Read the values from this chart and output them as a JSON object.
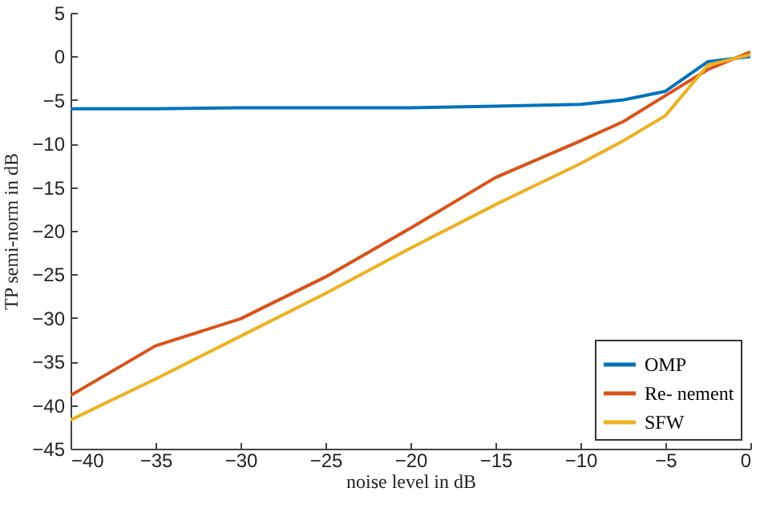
{
  "chart_data": {
    "type": "line",
    "xlabel": "noise level in dB",
    "ylabel": "TP semi-norm in dB",
    "x": [
      -40,
      -35,
      -30,
      -25,
      -20,
      -15,
      -10,
      -7.5,
      -5,
      -2.5,
      0
    ],
    "series": [
      {
        "name": "OMP",
        "color": "#0072bd",
        "values": [
          -6,
          -6,
          -5.9,
          -5.9,
          -5.9,
          -5.7,
          -5.5,
          -5,
          -4,
          -0.6,
          0
        ]
      },
      {
        "name": "Re- nement",
        "color": "#d95319",
        "values": [
          -38.9,
          -33.2,
          -30.1,
          -25.3,
          -19.7,
          -13.9,
          -9.7,
          -7.5,
          -4.5,
          -1.5,
          0.5
        ]
      },
      {
        "name": "SFW",
        "color": "#edb120",
        "values": [
          -41.7,
          -37,
          -32.1,
          -27.2,
          -22,
          -17,
          -12.3,
          -9.7,
          -6.8,
          -1,
          0.2
        ]
      }
    ],
    "xlim": [
      -40,
      0
    ],
    "xticks": [
      -40,
      -35,
      -30,
      -25,
      -20,
      -15,
      -10,
      -5,
      0
    ],
    "ylim": [
      -45,
      5
    ],
    "yticks": [
      -45,
      -40,
      -35,
      -30,
      -25,
      -20,
      -15,
      -10,
      -5,
      0,
      5
    ],
    "grid": false,
    "legend": "bottom right",
    "marker": "none",
    "line_style": "solid"
  }
}
